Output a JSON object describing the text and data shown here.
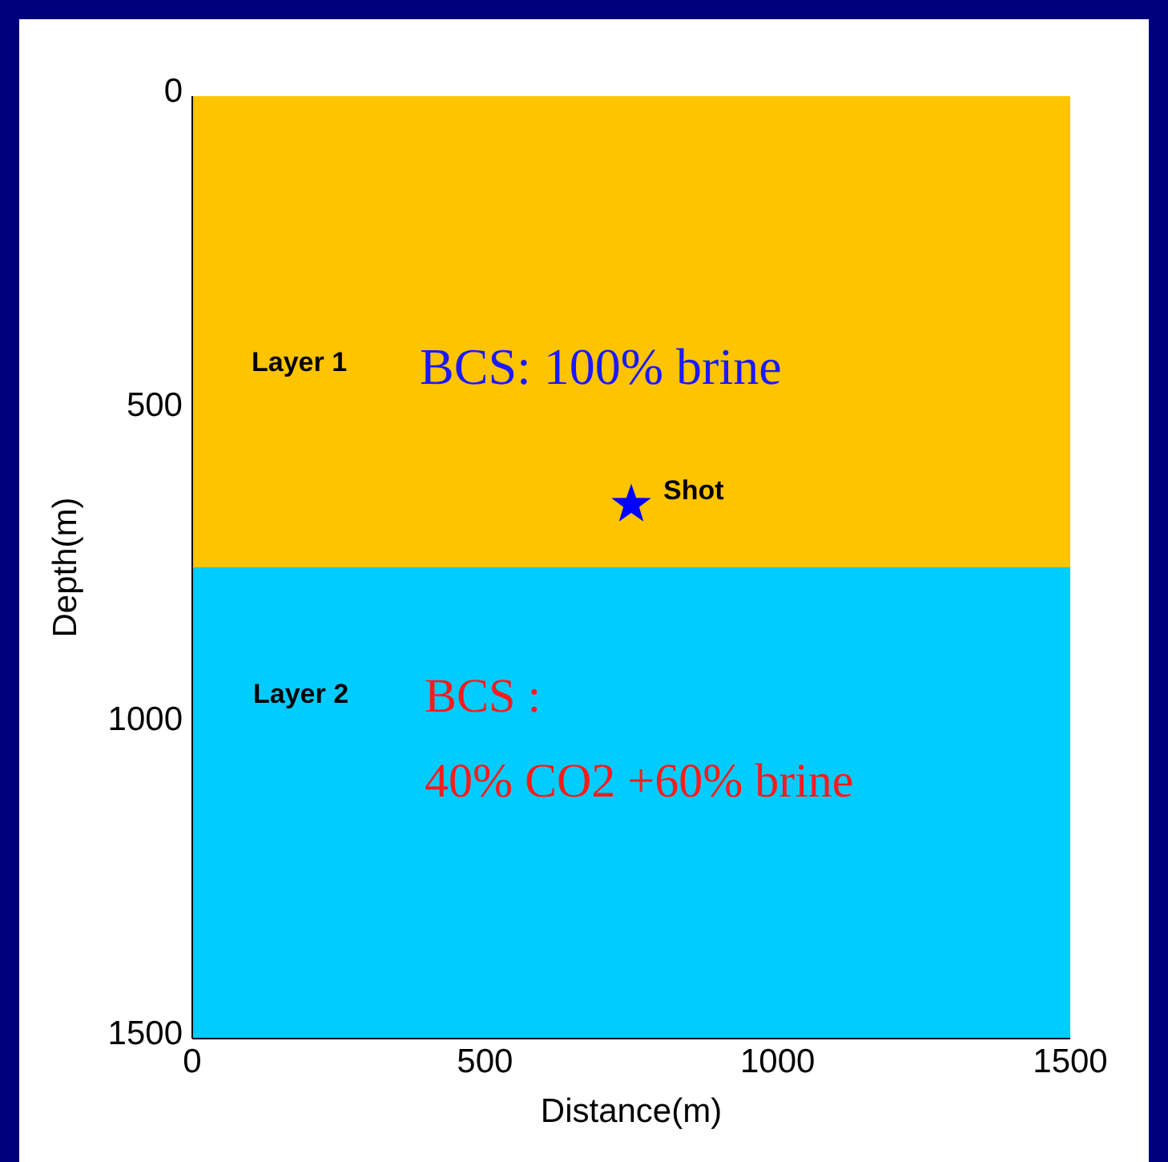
{
  "chart_data": {
    "type": "scatter",
    "xlabel": "Distance(m)",
    "ylabel": "Depth(m)",
    "x": [
      750
    ],
    "values": [
      650
    ],
    "color": "#0000ff",
    "marker": "star",
    "xlim": [
      0,
      1500
    ],
    "xticks": [
      0,
      500,
      1000,
      1500
    ],
    "ylim": [
      1500,
      0
    ],
    "yticks": [
      0,
      500,
      1000,
      1500
    ],
    "grid": false,
    "legend": false,
    "bands": [
      {
        "axis": "y",
        "from": 0,
        "to": 750,
        "color": "#ffc400"
      },
      {
        "axis": "y",
        "from": 750,
        "to": 1500,
        "color": "#00ccff"
      }
    ],
    "annotations": [
      {
        "text": "Shot",
        "x": 750,
        "y": 650
      },
      "Layer 1",
      "BCS: 100% brine",
      "Layer 2",
      "BCS :",
      "40% CO2 +60% brine"
    ]
  }
}
